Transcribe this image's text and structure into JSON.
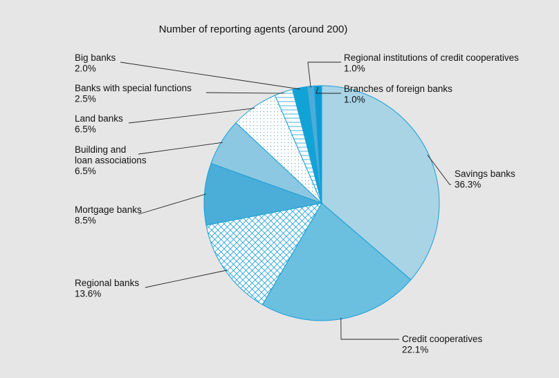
{
  "chart_data": {
    "type": "pie",
    "title": "Number of reporting agents (around 200)",
    "slices": [
      {
        "label": [
          "Savings banks"
        ],
        "pct_text": "36.3%",
        "value": 36.3,
        "fill": "#a8d4e6",
        "pattern": "none"
      },
      {
        "label": [
          "Credit cooperatives"
        ],
        "pct_text": "22.1%",
        "value": 22.1,
        "fill": "#6bbfdf",
        "pattern": "none"
      },
      {
        "label": [
          "Regional banks"
        ],
        "pct_text": "13.6%",
        "value": 13.6,
        "fill": "#ffffff",
        "pattern": "crosshatch"
      },
      {
        "label": [
          "Mortgage banks"
        ],
        "pct_text": "8.5%",
        "value": 8.5,
        "fill": "#4aaed8",
        "pattern": "none"
      },
      {
        "label": [
          "Building and",
          "loan associations"
        ],
        "pct_text": "6.5%",
        "value": 6.5,
        "fill": "#8cc8e2",
        "pattern": "none"
      },
      {
        "label": [
          "Land banks"
        ],
        "pct_text": "6.5%",
        "value": 6.5,
        "fill": "#ffffff",
        "pattern": "dots"
      },
      {
        "label": [
          "Banks with special functions"
        ],
        "pct_text": "2.5%",
        "value": 2.5,
        "fill": "#ffffff",
        "pattern": "hlines"
      },
      {
        "label": [
          "Big banks"
        ],
        "pct_text": "2.0%",
        "value": 2.0,
        "fill": "#12a3d6",
        "pattern": "none"
      },
      {
        "label": [
          "Regional institutions of credit cooperatives"
        ],
        "pct_text": "1.0%",
        "value": 1.0,
        "fill": "#4aaed8",
        "pattern": "none"
      },
      {
        "label": [
          "Branches of foreign banks"
        ],
        "pct_text": "1.0%",
        "value": 1.0,
        "fill": "#0f99d0",
        "pattern": "none"
      }
    ]
  }
}
